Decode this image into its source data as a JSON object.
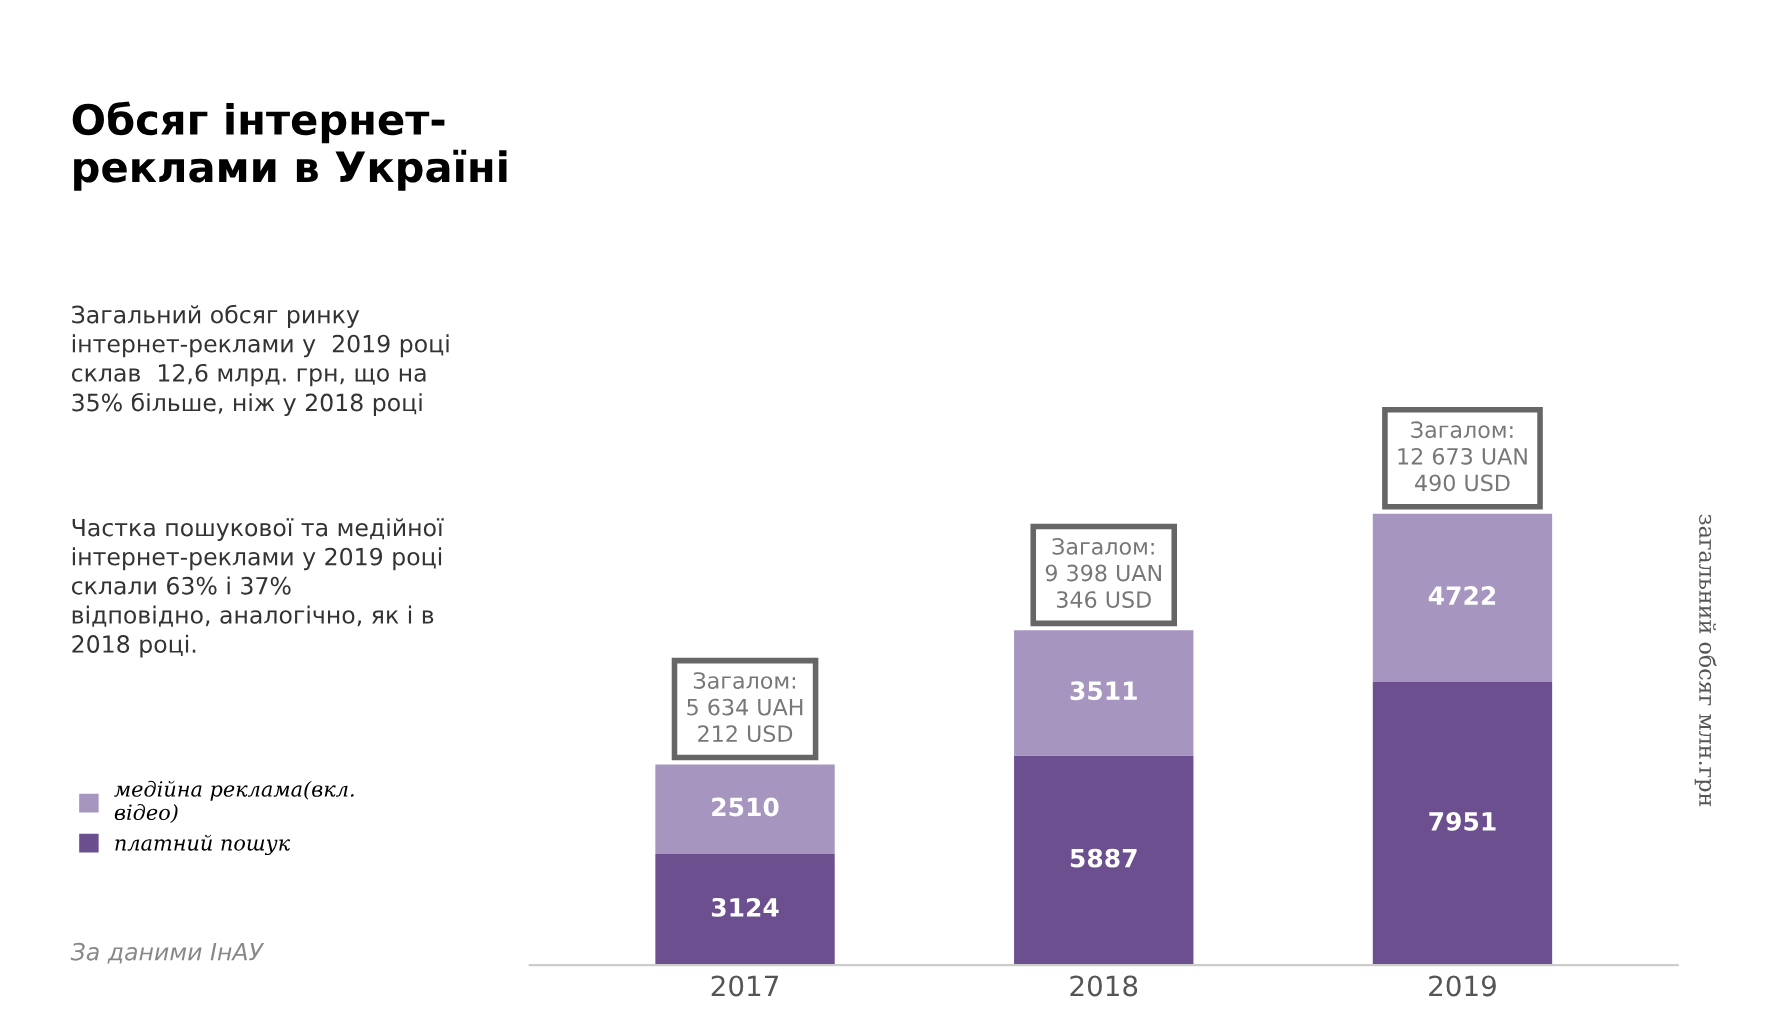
{
  "chart_data": {
    "type": "bar",
    "stacked": true,
    "data_labels": true,
    "legend": "left",
    "title": "Обсяг інтернет-\nреклами в Україні",
    "ylabel": "загальний обсяг млн.грн",
    "categories": [
      "2017",
      "2018",
      "2019"
    ],
    "series": [
      {
        "name": "платний пошук",
        "color": "#6b4f8e",
        "values": [
          3124,
          5887,
          7951
        ]
      },
      {
        "name": "медійна реклама(вкл.\nвідео)",
        "color": "#a595bf",
        "values": [
          2510,
          3511,
          4722
        ]
      }
    ],
    "totals": [
      "Загалом:\n5 634 UAH\n212 USD",
      "Загалом:\n9 398 UAN\n346 USD",
      "Загалом:\n12 673 UAN\n490 USD"
    ],
    "annotations": [
      "Загальний обсяг ринку\nінтернет-реклами у  2019 році\nсклав  12,6 млрд. грн, що на\n35% більше, ніж у 2018 році",
      "Частка пошукової та медійної\nінтернет-реклами у 2019 році\nсклали 63% і 37%\nвідповідно, аналогічно, як і в\n2018 році.",
      "За даними ІнАУ"
    ]
  }
}
